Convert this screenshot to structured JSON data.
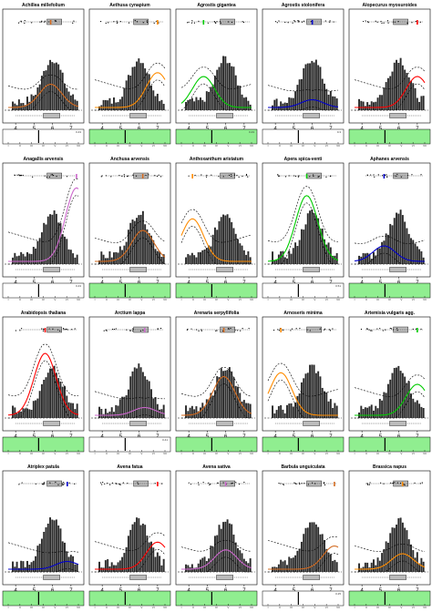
{
  "chart_data": {
    "type": "scatter",
    "layout": "small multiples, 5 columns x 4 rows",
    "x_ticks": [
      "4",
      "5",
      "6",
      "7"
    ],
    "xlim": [
      3.5,
      7.5
    ],
    "strip_ticks": [
      "I",
      "II",
      "III",
      "IV",
      "V",
      "VI",
      "VII"
    ],
    "panels": [
      {
        "title": "Achillea millefolium",
        "strip_value": "0.43",
        "strip_green": false,
        "center": 5.9,
        "peak": 0.3
      },
      {
        "title": "Aethusa cynapium",
        "strip_value": "",
        "strip_green": true,
        "center": 7.0,
        "peak": 0.45
      },
      {
        "title": "Agrostis gigantea",
        "strip_value": "0.43",
        "strip_green": true,
        "center": 4.8,
        "peak": 0.4
      },
      {
        "title": "Agrostis stolonifera",
        "strip_value": "0.3",
        "strip_green": false,
        "center": 6.0,
        "peak": 0.1
      },
      {
        "title": "Alopecurus myosuroides",
        "strip_value": "",
        "strip_green": true,
        "center": 7.0,
        "peak": 0.4
      },
      {
        "title": "Anagallis arvensis",
        "strip_value": "0.43",
        "strip_green": false,
        "center": 7.3,
        "peak": 0.95
      },
      {
        "title": "Anchusa arvensis",
        "strip_value": "",
        "strip_green": true,
        "center": 6.2,
        "peak": 0.4
      },
      {
        "title": "Anthoxanthum aristatum",
        "strip_value": "",
        "strip_green": true,
        "center": 4.2,
        "peak": 0.55
      },
      {
        "title": "Apera spica-venti",
        "strip_value": "0.51",
        "strip_green": false,
        "center": 5.7,
        "peak": 0.85
      },
      {
        "title": "Aphanes arvensis",
        "strip_value": "",
        "strip_green": true,
        "center": 5.2,
        "peak": 0.2
      },
      {
        "title": "Arabidopsis thaliana",
        "strip_value": "",
        "strip_green": true,
        "center": 5.6,
        "peak": 0.8
      },
      {
        "title": "Arctium lappa",
        "strip_value": "0.41",
        "strip_green": false,
        "center": 6.3,
        "peak": 0.1
      },
      {
        "title": "Arenaria serpyllifolia",
        "strip_value": "",
        "strip_green": true,
        "center": 5.9,
        "peak": 0.5
      },
      {
        "title": "Arnoseris minima",
        "strip_value": "",
        "strip_green": true,
        "center": 4.3,
        "peak": 0.55
      },
      {
        "title": "Artemisia vulgaris agg.",
        "strip_value": "",
        "strip_green": true,
        "center": 7.0,
        "peak": 0.4
      },
      {
        "title": "Atriplex patula",
        "strip_value": "",
        "strip_green": true,
        "center": 6.8,
        "peak": 0.1
      },
      {
        "title": "Avena fatua",
        "strip_value": "",
        "strip_green": true,
        "center": 7.0,
        "peak": 0.35
      },
      {
        "title": "Avena sativa",
        "strip_value": "",
        "strip_green": true,
        "center": 6.0,
        "peak": 0.25
      },
      {
        "title": "Barbula unguiculata",
        "strip_value": "0.25",
        "strip_green": false,
        "center": 7.2,
        "peak": 0.3
      },
      {
        "title": "Brassica napus",
        "strip_value": "",
        "strip_green": true,
        "center": 6.2,
        "peak": 0.2
      }
    ]
  },
  "colors": {
    "strip_fill": "#90ee90",
    "histogram": "#333333",
    "curve_accents": [
      "#d2691e",
      "#ff8c00",
      "#00cc00",
      "#0000cc",
      "#ff0000",
      "#cc66cc"
    ]
  }
}
